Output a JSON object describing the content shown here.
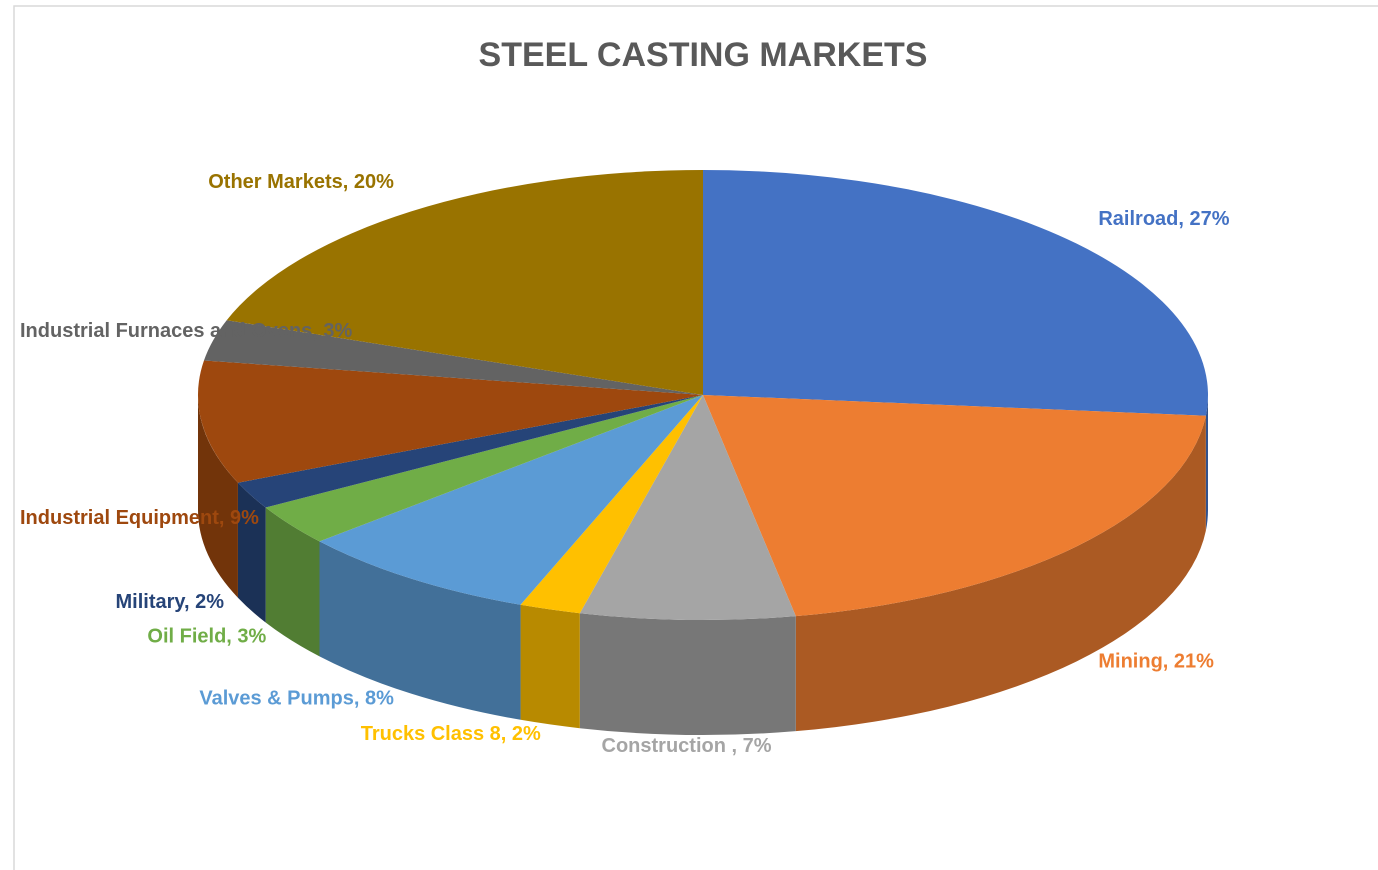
{
  "chart_data": {
    "type": "pie3d",
    "title": "STEEL CASTING MARKETS",
    "categories": [
      "Railroad",
      "Mining",
      "Construction ",
      "Trucks Class 8",
      "Valves & Pumps",
      "Oil Field",
      "Military",
      "Industrial Equipment",
      "Industrial Furnaces and Ovens",
      "Other Markets"
    ],
    "values": [
      27,
      21,
      7,
      2,
      8,
      3,
      2,
      9,
      3,
      20
    ],
    "value_labels": [
      "Railroad, 27%",
      "Mining, 21%",
      "Construction , 7%",
      "Trucks Class 8, 2%",
      "Valves & Pumps, 8%",
      "Oil Field, 3%",
      "Military, 2%",
      "Industrial Equipment, 9%",
      "Industrial Furnaces and Ovens, 3%",
      "Other Markets, 20%"
    ],
    "colors": [
      "#4472c4",
      "#ed7d31",
      "#a5a5a5",
      "#ffc000",
      "#5b9bd5",
      "#70ad47",
      "#264478",
      "#9e480e",
      "#636363",
      "#997300"
    ]
  }
}
